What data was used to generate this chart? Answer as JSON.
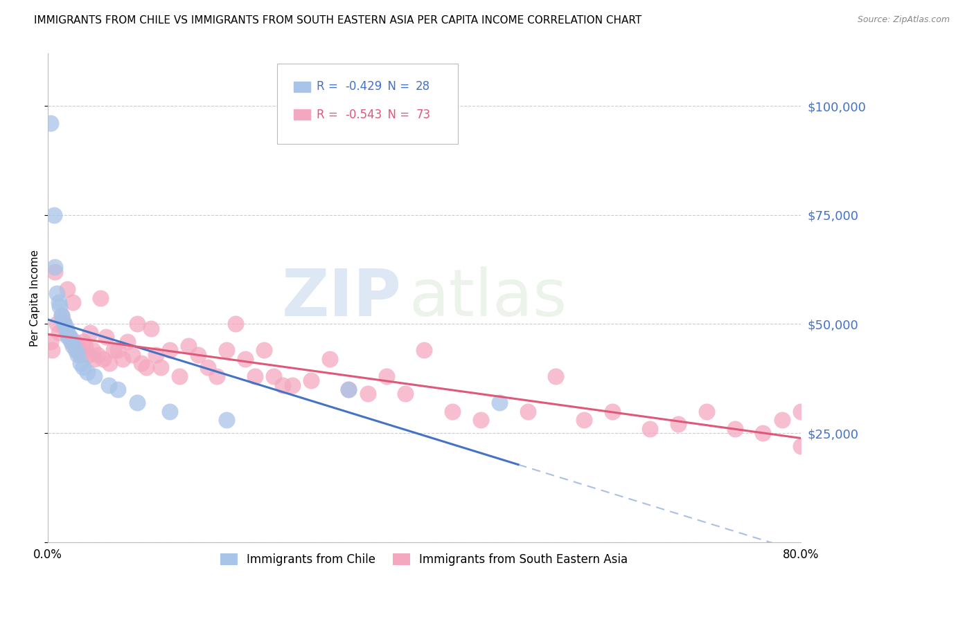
{
  "title": "IMMIGRANTS FROM CHILE VS IMMIGRANTS FROM SOUTH EASTERN ASIA PER CAPITA INCOME CORRELATION CHART",
  "source": "Source: ZipAtlas.com",
  "ylabel": "Per Capita Income",
  "xlim": [
    0.0,
    0.8
  ],
  "ylim": [
    0,
    112000
  ],
  "yticks": [
    0,
    25000,
    50000,
    75000,
    100000
  ],
  "ytick_labels": [
    "",
    "$25,000",
    "$50,000",
    "$75,000",
    "$100,000"
  ],
  "xticks": [
    0.0,
    0.8
  ],
  "xtick_labels": [
    "0.0%",
    "80.0%"
  ],
  "watermark_zip": "ZIP",
  "watermark_atlas": "atlas",
  "chile_color": "#a8c4e8",
  "sea_color": "#f4a8c0",
  "chile_line_color": "#4472c4",
  "sea_line_color": "#e05878",
  "chile_R": -0.429,
  "chile_N": 28,
  "sea_R": -0.543,
  "sea_N": 73,
  "chile_scatter_x": [
    0.003,
    0.007,
    0.008,
    0.01,
    0.012,
    0.013,
    0.015,
    0.016,
    0.018,
    0.02,
    0.021,
    0.022,
    0.024,
    0.025,
    0.027,
    0.03,
    0.032,
    0.035,
    0.038,
    0.042,
    0.05,
    0.065,
    0.075,
    0.095,
    0.13,
    0.19,
    0.32,
    0.48
  ],
  "chile_scatter_y": [
    96000,
    75000,
    63000,
    57000,
    55000,
    54000,
    52000,
    51000,
    50000,
    49000,
    48000,
    47000,
    47000,
    46000,
    45000,
    44000,
    43000,
    41000,
    40000,
    39000,
    38000,
    36000,
    35000,
    32000,
    30000,
    28000,
    35000,
    32000
  ],
  "sea_scatter_x": [
    0.003,
    0.005,
    0.008,
    0.01,
    0.012,
    0.015,
    0.017,
    0.019,
    0.021,
    0.023,
    0.025,
    0.027,
    0.029,
    0.031,
    0.033,
    0.035,
    0.038,
    0.04,
    0.043,
    0.045,
    0.048,
    0.05,
    0.053,
    0.056,
    0.059,
    0.062,
    0.066,
    0.07,
    0.075,
    0.08,
    0.085,
    0.09,
    0.095,
    0.1,
    0.105,
    0.11,
    0.115,
    0.12,
    0.13,
    0.14,
    0.15,
    0.16,
    0.17,
    0.18,
    0.19,
    0.2,
    0.21,
    0.22,
    0.23,
    0.24,
    0.25,
    0.26,
    0.28,
    0.3,
    0.32,
    0.34,
    0.36,
    0.38,
    0.4,
    0.43,
    0.46,
    0.51,
    0.54,
    0.57,
    0.6,
    0.64,
    0.67,
    0.7,
    0.73,
    0.76,
    0.78,
    0.8,
    0.8
  ],
  "sea_scatter_y": [
    46000,
    44000,
    62000,
    50000,
    48000,
    52000,
    50000,
    49000,
    58000,
    47000,
    46000,
    55000,
    46000,
    44000,
    45000,
    43000,
    46000,
    45000,
    43000,
    48000,
    44000,
    42000,
    43000,
    56000,
    42000,
    47000,
    41000,
    44000,
    44000,
    42000,
    46000,
    43000,
    50000,
    41000,
    40000,
    49000,
    43000,
    40000,
    44000,
    38000,
    45000,
    43000,
    40000,
    38000,
    44000,
    50000,
    42000,
    38000,
    44000,
    38000,
    36000,
    36000,
    37000,
    42000,
    35000,
    34000,
    38000,
    34000,
    44000,
    30000,
    28000,
    30000,
    38000,
    28000,
    30000,
    26000,
    27000,
    30000,
    26000,
    25000,
    28000,
    30000,
    22000
  ],
  "background_color": "#ffffff",
  "title_fontsize": 11,
  "axis_label_fontsize": 10,
  "tick_fontsize": 11,
  "legend_fontsize": 12,
  "chile_line_start_x": 0.0,
  "chile_line_end_x": 0.5,
  "chile_line_dash_end_x": 0.8,
  "sea_line_start_x": 0.0,
  "sea_line_end_x": 0.8
}
